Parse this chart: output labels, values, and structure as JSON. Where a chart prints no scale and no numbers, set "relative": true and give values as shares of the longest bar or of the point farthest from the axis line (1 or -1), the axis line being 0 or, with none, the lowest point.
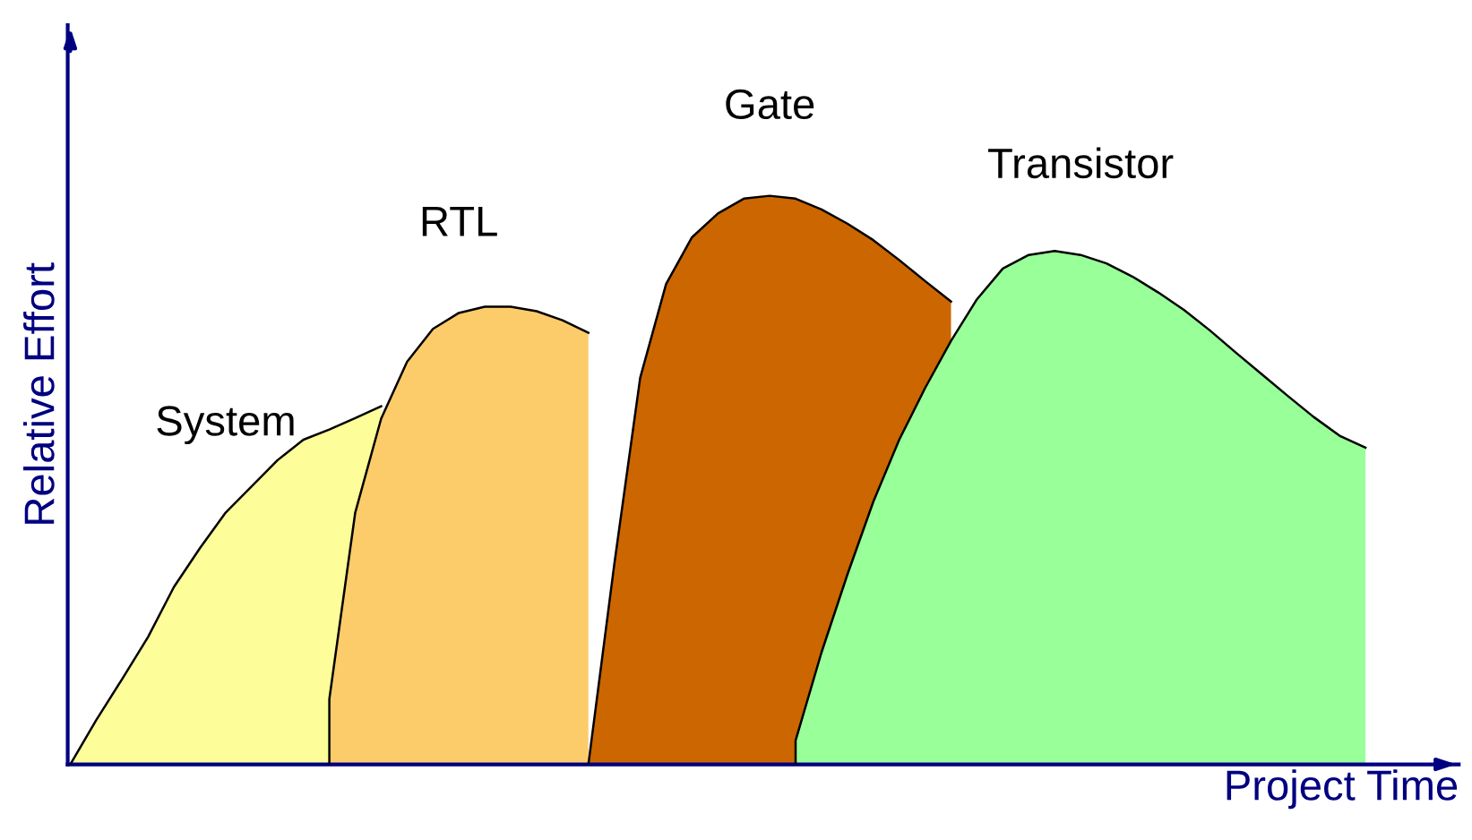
{
  "chart_data": {
    "type": "area",
    "relative": true,
    "xlabel": "Project Time",
    "ylabel": "Relative Effort",
    "categories": [
      null,
      null,
      null,
      null,
      null,
      null,
      null,
      null,
      null,
      null,
      null,
      null,
      null,
      null,
      null,
      null,
      null,
      null,
      null,
      null,
      null,
      null,
      null,
      null,
      null,
      null,
      null,
      null,
      null,
      null,
      null,
      null,
      null,
      null,
      null,
      null,
      null,
      null,
      null,
      null,
      null,
      null,
      null,
      null,
      null,
      null,
      null,
      null,
      null,
      null,
      null,
      null,
      null,
      null
    ],
    "series": [
      {
        "name": "System",
        "color": "#fdfd9a",
        "values": [
          0,
          0.078,
          0.15,
          0.224,
          0.312,
          0.38,
          0.443,
          0.489,
          0.535,
          0.571,
          0.589,
          0.609,
          0.63,
          null,
          null,
          null,
          null,
          null,
          null,
          null,
          null,
          null,
          null,
          null,
          null,
          null,
          null,
          null,
          null,
          null,
          null,
          null,
          null,
          null,
          null,
          null,
          null,
          null,
          null,
          null,
          null,
          null,
          null,
          null,
          null,
          null,
          null,
          null,
          null,
          null,
          null,
          null,
          null,
          null
        ]
      },
      {
        "name": "RTL",
        "color": "#fccc6a",
        "values": [
          null,
          null,
          null,
          null,
          null,
          null,
          null,
          null,
          null,
          null,
          0.115,
          0.443,
          0.608,
          0.708,
          0.766,
          0.794,
          0.805,
          0.805,
          0.797,
          0.781,
          0.759,
          null,
          null,
          null,
          null,
          null,
          null,
          null,
          null,
          null,
          null,
          null,
          null,
          null,
          null,
          null,
          null,
          null,
          null,
          null,
          null,
          null,
          null,
          null,
          null,
          null,
          null,
          null,
          null,
          null,
          null,
          null,
          null,
          null
        ]
      },
      {
        "name": "Gate",
        "color": "#cc6600",
        "values": [
          null,
          null,
          null,
          null,
          null,
          null,
          null,
          null,
          null,
          null,
          null,
          null,
          null,
          null,
          null,
          null,
          null,
          null,
          null,
          null,
          0,
          0.352,
          0.68,
          0.845,
          0.927,
          0.969,
          0.995,
          1,
          0.995,
          0.976,
          0.951,
          0.922,
          0.887,
          0.85,
          0.814,
          null,
          null,
          null,
          null,
          null,
          null,
          null,
          null,
          null,
          null,
          null,
          null,
          null,
          null,
          null,
          null,
          null,
          null,
          null
        ]
      },
      {
        "name": "Transistor",
        "color": "#99ff99",
        "values": [
          null,
          null,
          null,
          null,
          null,
          null,
          null,
          null,
          null,
          null,
          null,
          null,
          null,
          null,
          null,
          null,
          null,
          null,
          null,
          null,
          null,
          null,
          null,
          null,
          null,
          null,
          null,
          null,
          0.042,
          0.197,
          0.334,
          0.462,
          0.571,
          0.662,
          0.745,
          0.818,
          0.872,
          0.896,
          0.903,
          0.896,
          0.881,
          0.858,
          0.83,
          0.799,
          0.763,
          0.724,
          0.686,
          0.648,
          0.611,
          0.578,
          0.557,
          null,
          null,
          null
        ]
      }
    ]
  }
}
